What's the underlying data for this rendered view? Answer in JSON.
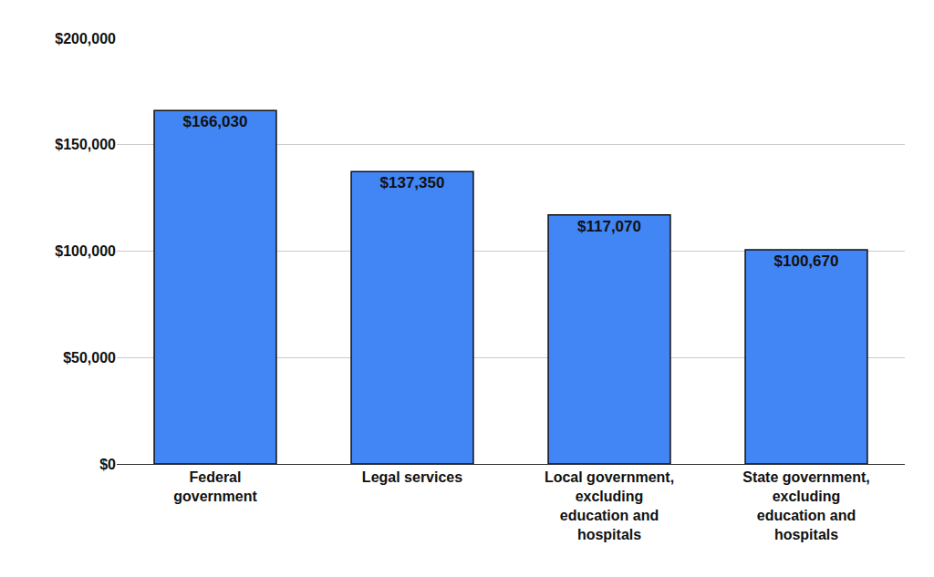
{
  "chart_data": {
    "type": "bar",
    "categories": [
      "Federal government",
      "Legal services",
      "Local government, excluding education and hospitals",
      "State government, excluding education and hospitals"
    ],
    "values": [
      166030,
      137350,
      117070,
      100670
    ],
    "value_labels": [
      "$166,030",
      "$137,350",
      "$117,070",
      "$100,670"
    ],
    "data_labels": true,
    "color": "#4285f4",
    "ylim": [
      0,
      200000
    ],
    "yticks": [
      {
        "value": 0,
        "label": "$0"
      },
      {
        "value": 50000,
        "label": "$50,000"
      },
      {
        "value": 100000,
        "label": "$100,000"
      },
      {
        "value": 150000,
        "label": "$150,000"
      },
      {
        "value": 200000,
        "label": "$200,000"
      }
    ],
    "grid": true
  }
}
